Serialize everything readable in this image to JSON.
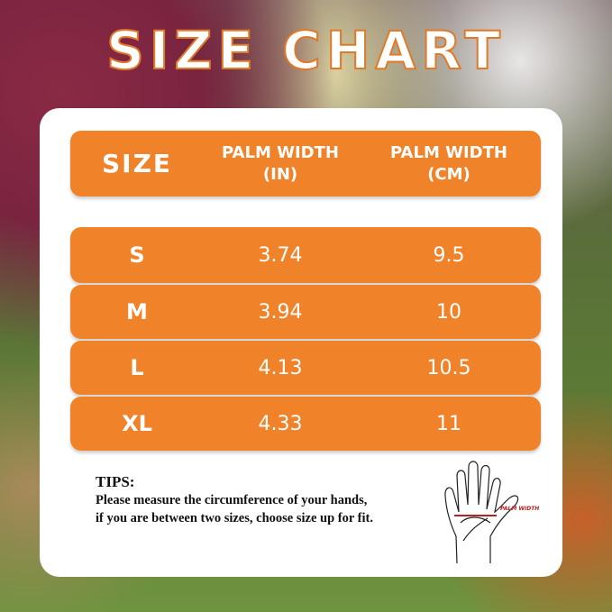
{
  "title": "SIZE CHART",
  "table": {
    "header_lines": {
      "size": "SIZE",
      "in_1": "PALM WIDTH",
      "in_2": "(IN)",
      "cm_1": "PALM WIDTH",
      "cm_2": "(CM)"
    },
    "rows": [
      {
        "size": "S",
        "in": "3.74",
        "cm": "9.5"
      },
      {
        "size": "M",
        "in": "3.94",
        "cm": "10"
      },
      {
        "size": "L",
        "in": "4.13",
        "cm": "10.5"
      },
      {
        "size": "XL",
        "in": "4.33",
        "cm": "11"
      }
    ]
  },
  "tips": {
    "heading": "TIPS:",
    "line1": "Please measure the circumference of your hands,",
    "line2": "if you are between two sizes, choose size up for fit."
  },
  "hand_label": "PALM WIDTH",
  "colors": {
    "accent": "#f0832a",
    "card": "#ffffff",
    "palm_line": "#b22222"
  }
}
